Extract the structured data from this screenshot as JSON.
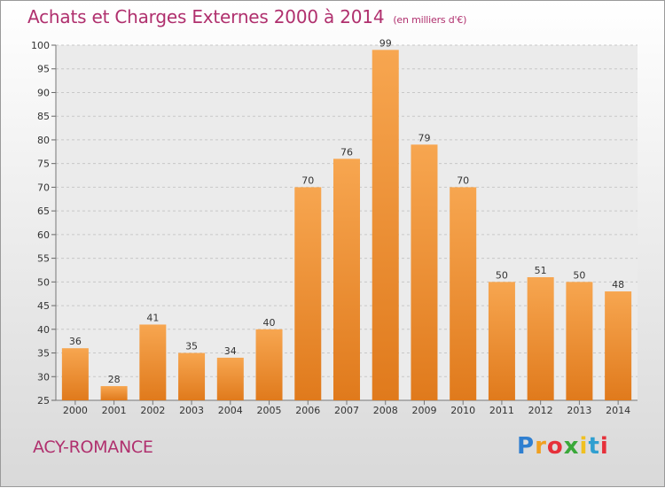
{
  "chart_data": {
    "type": "bar",
    "title": "Achats et Charges Externes 2000 à 2014",
    "subtitle": "(en milliers d'€)",
    "categories": [
      "2000",
      "2001",
      "2002",
      "2003",
      "2004",
      "2005",
      "2006",
      "2007",
      "2008",
      "2009",
      "2010",
      "2011",
      "2012",
      "2013",
      "2014"
    ],
    "values": [
      36,
      28,
      41,
      35,
      34,
      40,
      70,
      76,
      99,
      79,
      70,
      50,
      51,
      50,
      48
    ],
    "ylim": [
      25,
      100
    ],
    "yticks": [
      25,
      30,
      35,
      40,
      45,
      50,
      55,
      60,
      65,
      70,
      75,
      80,
      85,
      90,
      95,
      100
    ],
    "grid": true,
    "bar_color_top": "#f7a650",
    "bar_color_bottom": "#e07a1c"
  },
  "place_label": "ACY-ROMANCE",
  "logo": {
    "letters": [
      "P",
      "r",
      "o",
      "x",
      "i",
      "t",
      "i"
    ],
    "colors": [
      "#2f7fd0",
      "#f0a020",
      "#e6303a",
      "#3aa83a",
      "#f0c020",
      "#2f9fd0",
      "#e6303a"
    ]
  }
}
